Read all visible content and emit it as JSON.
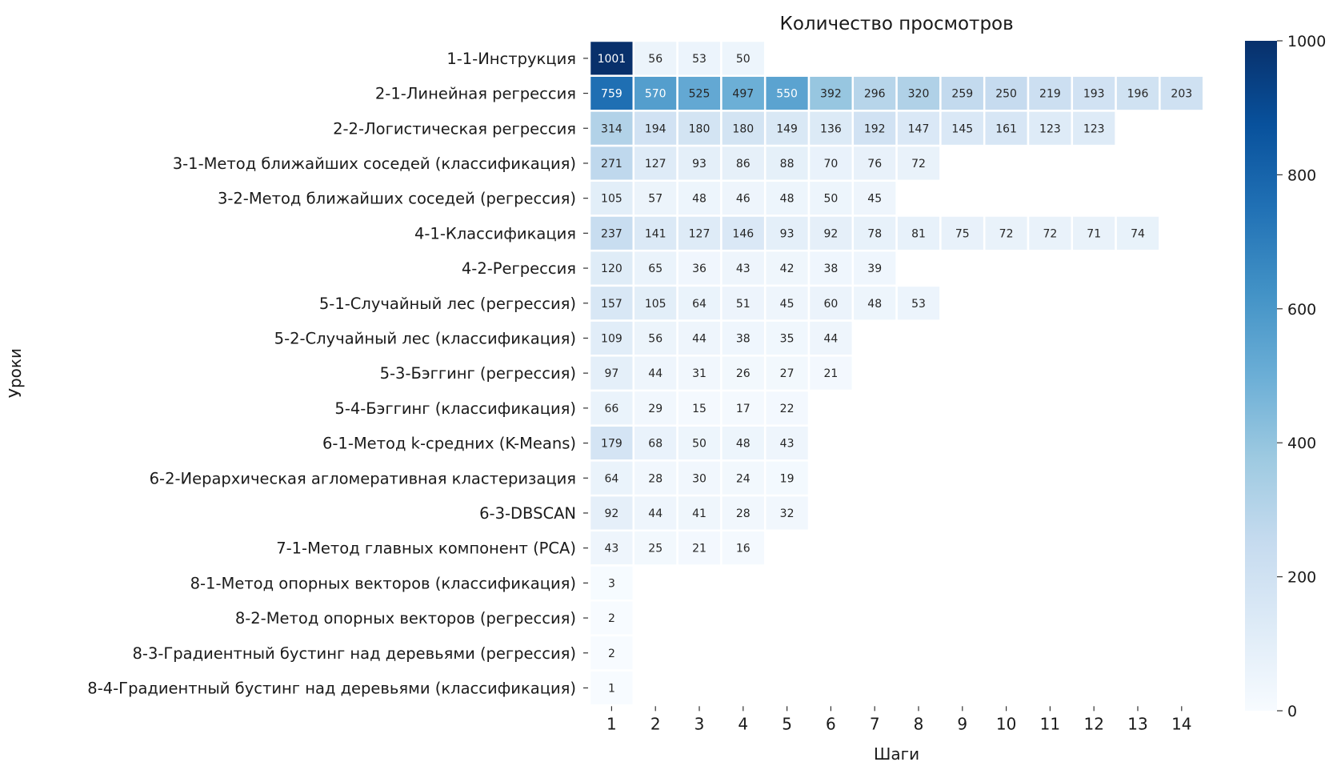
{
  "chart_data": {
    "type": "heatmap",
    "title": "Количество просмотров",
    "xlabel": "Шаги",
    "ylabel": "Уроки",
    "x_categories": [
      1,
      2,
      3,
      4,
      5,
      6,
      7,
      8,
      9,
      10,
      11,
      12,
      13,
      14
    ],
    "y_categories": [
      "1-1-Инструкция",
      "2-1-Линейная регрессия",
      "2-2-Логистическая регрессия",
      "3-1-Метод ближайших соседей (классификация)",
      "3-2-Метод ближайших соседей (регрессия)",
      "4-1-Классификация",
      "4-2-Регрессия",
      "5-1-Случайный лес (регрессия)",
      "5-2-Случайный лес (классификация)",
      "5-3-Бэггинг (регрессия)",
      "5-4-Бэггинг (классификация)",
      "6-1-Метод k-средних (K-Means)",
      "6-2-Иерархическая агломеративная кластеризация",
      "6-3-DBSCAN",
      "7-1-Метод главных компонент (PCA)",
      "8-1-Метод опорных векторов (классификация)",
      "8-2-Метод опорных векторов (регрессия)",
      "8-3-Градиентный бустинг над деревьями (регрессия)",
      "8-4-Градиентный бустинг над деревьями (классификация)"
    ],
    "values": [
      [
        1001,
        56,
        53,
        50
      ],
      [
        759,
        570,
        525,
        497,
        550,
        392,
        296,
        320,
        259,
        250,
        219,
        193,
        196,
        203
      ],
      [
        314,
        194,
        180,
        180,
        149,
        136,
        192,
        147,
        145,
        161,
        123,
        123
      ],
      [
        271,
        127,
        93,
        86,
        88,
        70,
        76,
        72
      ],
      [
        105,
        57,
        48,
        46,
        48,
        50,
        45
      ],
      [
        237,
        141,
        127,
        146,
        93,
        92,
        78,
        81,
        75,
        72,
        72,
        71,
        74
      ],
      [
        120,
        65,
        36,
        43,
        42,
        38,
        39
      ],
      [
        157,
        105,
        64,
        51,
        45,
        60,
        48,
        53
      ],
      [
        109,
        56,
        44,
        38,
        35,
        44
      ],
      [
        97,
        44,
        31,
        26,
        27,
        21
      ],
      [
        66,
        29,
        15,
        17,
        22
      ],
      [
        179,
        68,
        50,
        48,
        43
      ],
      [
        64,
        28,
        30,
        24,
        19
      ],
      [
        92,
        44,
        41,
        28,
        32
      ],
      [
        43,
        25,
        21,
        16
      ],
      [
        3
      ],
      [
        2
      ],
      [
        2
      ],
      [
        1
      ]
    ],
    "colorbar": {
      "colormap": "Blues",
      "vmin": 0,
      "vmax": 1000,
      "ticks": [
        0,
        200,
        400,
        600,
        800,
        1000
      ]
    }
  }
}
